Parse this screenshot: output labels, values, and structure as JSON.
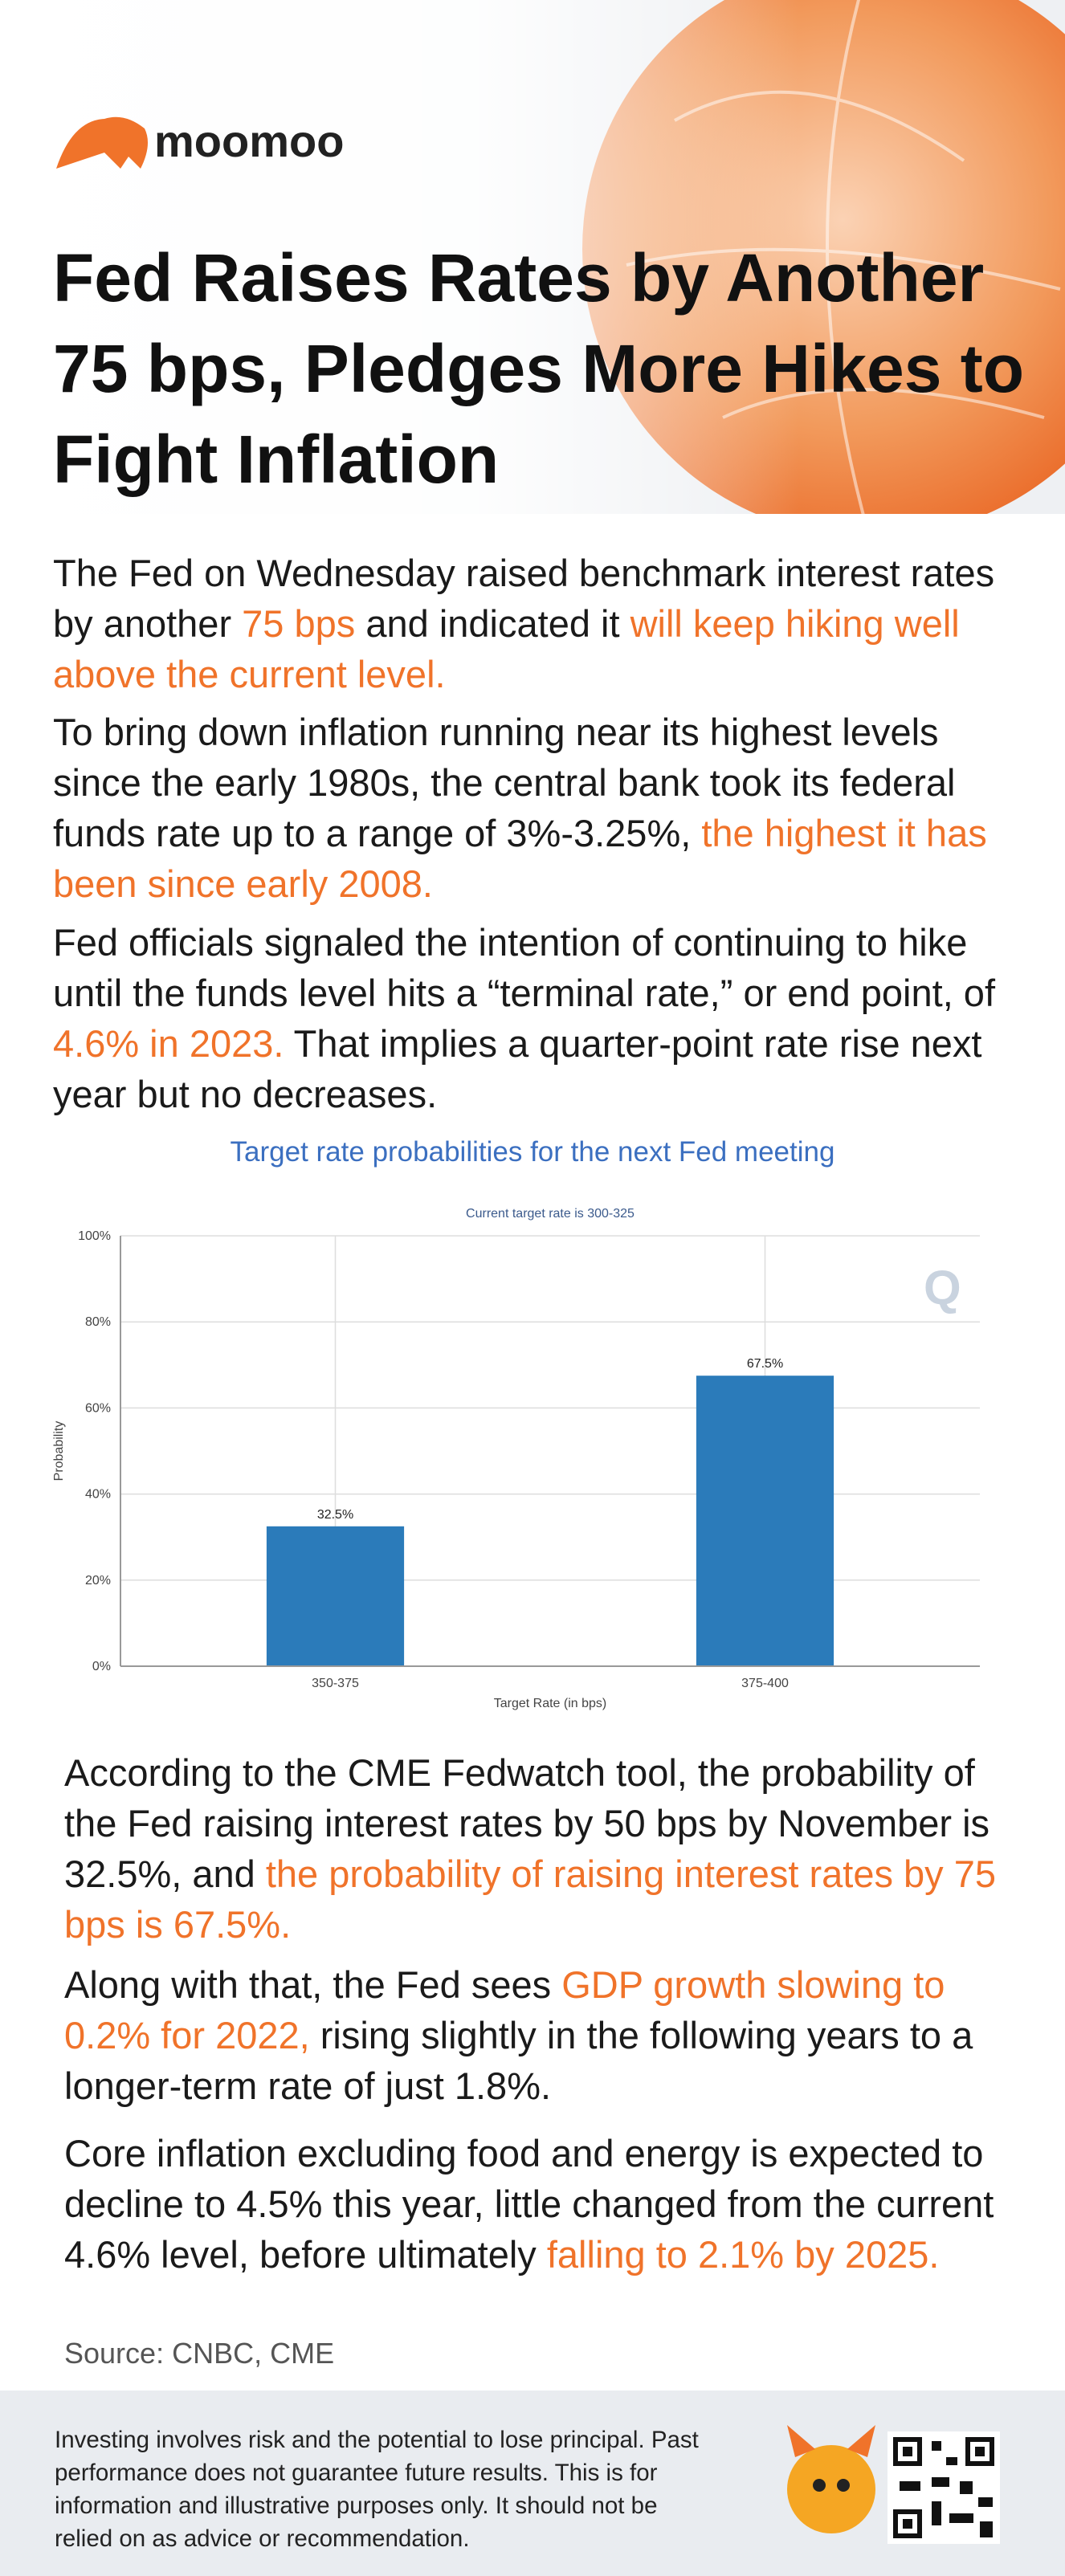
{
  "header": {
    "logo": "moomoo",
    "title": "Fed Raises Rates by Another 75 bps, Pledges More Hikes to Fight Inflation"
  },
  "paragraphs": [
    [
      {
        "text": "The Fed on Wednesday raised benchmark interest rates by another ",
        "color": "#1a1a1a"
      },
      {
        "text": "75 bps",
        "color": "#f0732a"
      },
      {
        "text": " and indicated it ",
        "color": "#1a1a1a"
      },
      {
        "text": "will keep hiking well above the current level.",
        "color": "#f0732a"
      }
    ],
    [
      {
        "text": "To bring down inflation running near its highest levels since the early 1980s, the central bank took its federal funds rate up to a range of 3%-3.25%, ",
        "color": "#1a1a1a"
      },
      {
        "text": "the highest it has been since early 2008.",
        "color": "#f0732a"
      }
    ],
    [
      {
        "text": "Fed officials signaled the intention of continuing to hike until the funds level hits a “terminal rate,” or end point, of ",
        "color": "#1a1a1a"
      },
      {
        "text": "4.6% in 2023.",
        "color": "#f0732a"
      },
      {
        "text": " That implies a quarter-point rate rise next year but no decreases.",
        "color": "#1a1a1a"
      }
    ],
    [
      {
        "text": "According to the CME Fedwatch tool, the probability of the Fed raising interest rates by 50 bps by November is 32.5%, and ",
        "color": "#1a1a1a"
      },
      {
        "text": "the probability of raising interest rates by 75 bps is 67.5%.",
        "color": "#f0732a"
      }
    ],
    [
      {
        "text": "Along with that, the Fed sees ",
        "color": "#1a1a1a"
      },
      {
        "text": "GDP growth slowing to 0.2% for 2022,",
        "color": "#f0732a"
      },
      {
        "text": " rising slightly in the following years to a longer-term rate of just 1.8%.",
        "color": "#1a1a1a"
      }
    ],
    [
      {
        "text": "Core inflation excluding food and energy is expected to decline to 4.5% this year, little changed from the current 4.6% level, before ultimately ",
        "color": "#1a1a1a"
      },
      {
        "text": "falling to 2.1% by 2025.",
        "color": "#f0732a"
      }
    ]
  ],
  "chart_caption": "Target rate probabilities for the next Fed meeting",
  "chart_data": {
    "type": "bar",
    "title": "Current target rate is 300-325",
    "x_label": "Target Rate (in bps)",
    "y_label": "Probability",
    "categories": [
      "350-375",
      "375-400"
    ],
    "values": [
      32.5,
      67.5
    ],
    "value_labels": [
      "32.5%",
      "67.5%"
    ],
    "color": "#2b7bba",
    "ylim": [
      0,
      100
    ],
    "yticks": [
      {
        "value": 0,
        "label": "0%"
      },
      {
        "value": 20,
        "label": "20%"
      },
      {
        "value": 40,
        "label": "40%"
      },
      {
        "value": 60,
        "label": "60%"
      },
      {
        "value": 80,
        "label": "80%"
      },
      {
        "value": 100,
        "label": "100%"
      }
    ],
    "grid": true
  },
  "source": "Source: CNBC, CME",
  "disclaimer": "Investing involves risk and the potential to lose principal. Past performance does not guarantee future results. This is for information and illustrative purposes only. It should not be relied on as advice or recommendation."
}
